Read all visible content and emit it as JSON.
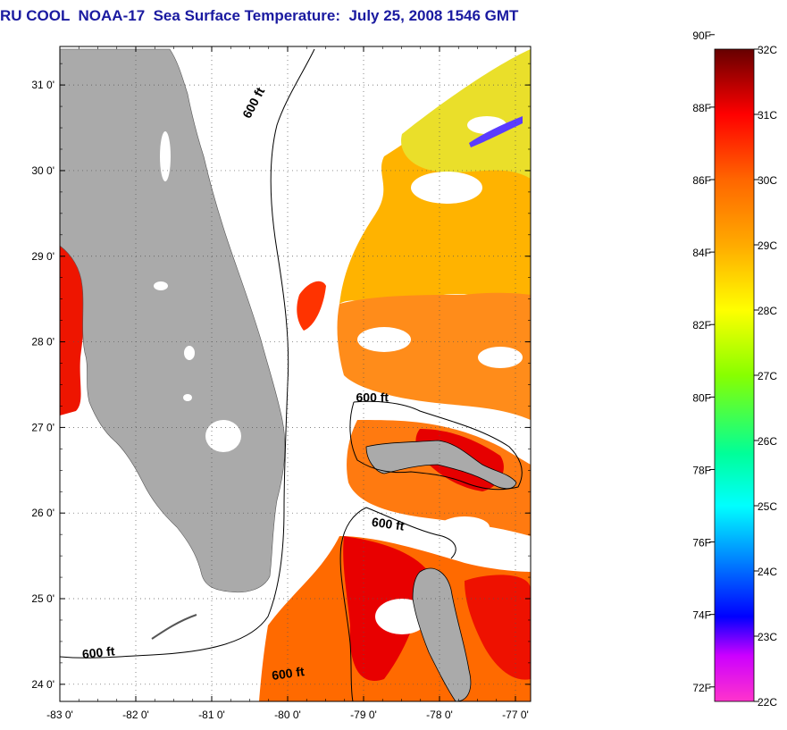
{
  "title": "RU COOL  NOAA-17  Sea Surface Temperature:  July 25, 2008 1546 GMT",
  "map": {
    "lon_range": [
      -83,
      -76.8
    ],
    "lat_range": [
      23.8,
      31.45
    ],
    "x_ticks": [
      "-83 0'",
      "-82 0'",
      "-81 0'",
      "-80 0'",
      "-79 0'",
      "-78 0'",
      "-77 0'"
    ],
    "x_tick_values": [
      -83,
      -82,
      -81,
      -80,
      -79,
      -78,
      -77
    ],
    "y_ticks": [
      "31 0'",
      "30 0'",
      "29 0'",
      "28 0'",
      "27 0'",
      "26 0'",
      "25 0'",
      "24 0'"
    ],
    "y_tick_values": [
      31,
      30,
      29,
      28,
      27,
      26,
      25,
      24
    ],
    "grid": true,
    "contour_label": "600 ft",
    "contour_labels": [
      {
        "text": "600 ft",
        "lon": -80.5,
        "lat": 30.6,
        "rotate": -62
      },
      {
        "text": "600 ft",
        "lon": -79.1,
        "lat": 27.3,
        "rotate": 0
      },
      {
        "text": "600 ft",
        "lon": -78.9,
        "lat": 25.85,
        "rotate": 8
      },
      {
        "text": "600 ft",
        "lon": -82.7,
        "lat": 24.3,
        "rotate": -6
      },
      {
        "text": "600 ft",
        "lon": -80.2,
        "lat": 24.05,
        "rotate": -8
      }
    ],
    "land_color": "#aaaaaa",
    "nodata_color": "#ffffff"
  },
  "colorbar": {
    "fahrenheit_labels": [
      "90F",
      "88F",
      "86F",
      "84F",
      "82F",
      "80F",
      "78F",
      "76F",
      "74F",
      "72F"
    ],
    "celsius_labels": [
      "32C",
      "31C",
      "30C",
      "29C",
      "28C",
      "27C",
      "26C",
      "25C",
      "24C",
      "23C",
      "22C"
    ],
    "temp_range_c": [
      22,
      32
    ],
    "colors": [
      "#ff33cc",
      "#9900ff",
      "#0000ff",
      "#0099ff",
      "#00ffff",
      "#00ff99",
      "#66ff00",
      "#ffff00",
      "#ffaa00",
      "#ff6600",
      "#ff0000",
      "#cc0000",
      "#660000"
    ]
  }
}
